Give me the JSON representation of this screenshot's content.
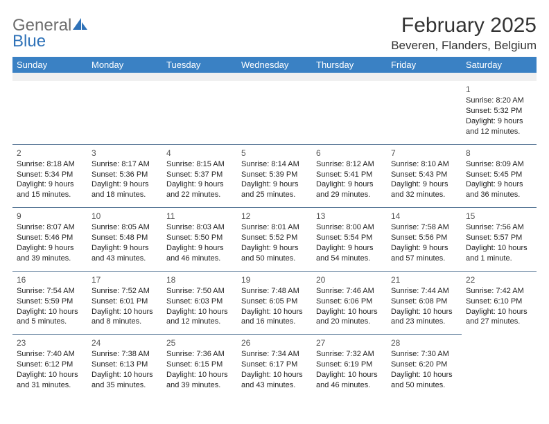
{
  "brand": {
    "general": "General",
    "blue": "Blue"
  },
  "title": "February 2025",
  "location": "Beveren, Flanders, Belgium",
  "colors": {
    "header_bg": "#3a81c4",
    "header_text": "#ffffff",
    "spacer_bg": "#f0f0f0",
    "cell_border": "#5b7a99",
    "logo_gray": "#6d6d6d",
    "logo_blue": "#2f72b8"
  },
  "dayNames": [
    "Sunday",
    "Monday",
    "Tuesday",
    "Wednesday",
    "Thursday",
    "Friday",
    "Saturday"
  ],
  "weeks": [
    [
      null,
      null,
      null,
      null,
      null,
      null,
      {
        "n": "1",
        "sr": "Sunrise: 8:20 AM",
        "ss": "Sunset: 5:32 PM",
        "dl": "Daylight: 9 hours and 12 minutes."
      }
    ],
    [
      {
        "n": "2",
        "sr": "Sunrise: 8:18 AM",
        "ss": "Sunset: 5:34 PM",
        "dl": "Daylight: 9 hours and 15 minutes."
      },
      {
        "n": "3",
        "sr": "Sunrise: 8:17 AM",
        "ss": "Sunset: 5:36 PM",
        "dl": "Daylight: 9 hours and 18 minutes."
      },
      {
        "n": "4",
        "sr": "Sunrise: 8:15 AM",
        "ss": "Sunset: 5:37 PM",
        "dl": "Daylight: 9 hours and 22 minutes."
      },
      {
        "n": "5",
        "sr": "Sunrise: 8:14 AM",
        "ss": "Sunset: 5:39 PM",
        "dl": "Daylight: 9 hours and 25 minutes."
      },
      {
        "n": "6",
        "sr": "Sunrise: 8:12 AM",
        "ss": "Sunset: 5:41 PM",
        "dl": "Daylight: 9 hours and 29 minutes."
      },
      {
        "n": "7",
        "sr": "Sunrise: 8:10 AM",
        "ss": "Sunset: 5:43 PM",
        "dl": "Daylight: 9 hours and 32 minutes."
      },
      {
        "n": "8",
        "sr": "Sunrise: 8:09 AM",
        "ss": "Sunset: 5:45 PM",
        "dl": "Daylight: 9 hours and 36 minutes."
      }
    ],
    [
      {
        "n": "9",
        "sr": "Sunrise: 8:07 AM",
        "ss": "Sunset: 5:46 PM",
        "dl": "Daylight: 9 hours and 39 minutes."
      },
      {
        "n": "10",
        "sr": "Sunrise: 8:05 AM",
        "ss": "Sunset: 5:48 PM",
        "dl": "Daylight: 9 hours and 43 minutes."
      },
      {
        "n": "11",
        "sr": "Sunrise: 8:03 AM",
        "ss": "Sunset: 5:50 PM",
        "dl": "Daylight: 9 hours and 46 minutes."
      },
      {
        "n": "12",
        "sr": "Sunrise: 8:01 AM",
        "ss": "Sunset: 5:52 PM",
        "dl": "Daylight: 9 hours and 50 minutes."
      },
      {
        "n": "13",
        "sr": "Sunrise: 8:00 AM",
        "ss": "Sunset: 5:54 PM",
        "dl": "Daylight: 9 hours and 54 minutes."
      },
      {
        "n": "14",
        "sr": "Sunrise: 7:58 AM",
        "ss": "Sunset: 5:56 PM",
        "dl": "Daylight: 9 hours and 57 minutes."
      },
      {
        "n": "15",
        "sr": "Sunrise: 7:56 AM",
        "ss": "Sunset: 5:57 PM",
        "dl": "Daylight: 10 hours and 1 minute."
      }
    ],
    [
      {
        "n": "16",
        "sr": "Sunrise: 7:54 AM",
        "ss": "Sunset: 5:59 PM",
        "dl": "Daylight: 10 hours and 5 minutes."
      },
      {
        "n": "17",
        "sr": "Sunrise: 7:52 AM",
        "ss": "Sunset: 6:01 PM",
        "dl": "Daylight: 10 hours and 8 minutes."
      },
      {
        "n": "18",
        "sr": "Sunrise: 7:50 AM",
        "ss": "Sunset: 6:03 PM",
        "dl": "Daylight: 10 hours and 12 minutes."
      },
      {
        "n": "19",
        "sr": "Sunrise: 7:48 AM",
        "ss": "Sunset: 6:05 PM",
        "dl": "Daylight: 10 hours and 16 minutes."
      },
      {
        "n": "20",
        "sr": "Sunrise: 7:46 AM",
        "ss": "Sunset: 6:06 PM",
        "dl": "Daylight: 10 hours and 20 minutes."
      },
      {
        "n": "21",
        "sr": "Sunrise: 7:44 AM",
        "ss": "Sunset: 6:08 PM",
        "dl": "Daylight: 10 hours and 23 minutes."
      },
      {
        "n": "22",
        "sr": "Sunrise: 7:42 AM",
        "ss": "Sunset: 6:10 PM",
        "dl": "Daylight: 10 hours and 27 minutes."
      }
    ],
    [
      {
        "n": "23",
        "sr": "Sunrise: 7:40 AM",
        "ss": "Sunset: 6:12 PM",
        "dl": "Daylight: 10 hours and 31 minutes."
      },
      {
        "n": "24",
        "sr": "Sunrise: 7:38 AM",
        "ss": "Sunset: 6:13 PM",
        "dl": "Daylight: 10 hours and 35 minutes."
      },
      {
        "n": "25",
        "sr": "Sunrise: 7:36 AM",
        "ss": "Sunset: 6:15 PM",
        "dl": "Daylight: 10 hours and 39 minutes."
      },
      {
        "n": "26",
        "sr": "Sunrise: 7:34 AM",
        "ss": "Sunset: 6:17 PM",
        "dl": "Daylight: 10 hours and 43 minutes."
      },
      {
        "n": "27",
        "sr": "Sunrise: 7:32 AM",
        "ss": "Sunset: 6:19 PM",
        "dl": "Daylight: 10 hours and 46 minutes."
      },
      {
        "n": "28",
        "sr": "Sunrise: 7:30 AM",
        "ss": "Sunset: 6:20 PM",
        "dl": "Daylight: 10 hours and 50 minutes."
      },
      null
    ]
  ]
}
